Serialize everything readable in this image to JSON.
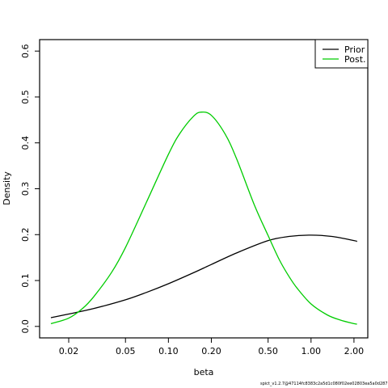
{
  "chart_data": {
    "type": "line",
    "title": "",
    "xlabel": "beta",
    "ylabel": "Density",
    "x_scale": "log",
    "xlim": [
      0.0125,
      2.5
    ],
    "ylim": [
      -0.025,
      0.625
    ],
    "x_ticks": [
      0.02,
      0.05,
      0.1,
      0.2,
      0.5,
      1.0,
      2.0
    ],
    "x_tick_labels": [
      "0.02",
      "0.05",
      "0.10",
      "0.20",
      "0.50",
      "1.00",
      "2.00"
    ],
    "y_ticks": [
      0.0,
      0.1,
      0.2,
      0.3,
      0.4,
      0.5,
      0.6
    ],
    "y_tick_labels": [
      "0.0",
      "0.1",
      "0.2",
      "0.3",
      "0.4",
      "0.5",
      "0.6"
    ],
    "grid": false,
    "legend_position": "top-right",
    "series": [
      {
        "name": "Prior",
        "color": "#000000",
        "x": [
          0.015,
          0.02,
          0.03,
          0.05,
          0.07,
          0.1,
          0.15,
          0.2,
          0.3,
          0.5,
          0.7,
          1.0,
          1.4,
          2.0,
          2.1
        ],
        "y": [
          0.019,
          0.027,
          0.039,
          0.058,
          0.074,
          0.093,
          0.117,
          0.135,
          0.16,
          0.187,
          0.196,
          0.199,
          0.196,
          0.187,
          0.185
        ]
      },
      {
        "name": "Post.",
        "color": "#00cc00",
        "x": [
          0.015,
          0.02,
          0.025,
          0.03,
          0.04,
          0.05,
          0.07,
          0.1,
          0.12,
          0.15,
          0.17,
          0.2,
          0.25,
          0.3,
          0.4,
          0.5,
          0.6,
          0.7,
          0.8,
          1.0,
          1.3,
          1.6,
          2.0,
          2.1
        ],
        "y": [
          0.006,
          0.018,
          0.039,
          0.065,
          0.118,
          0.172,
          0.27,
          0.375,
          0.42,
          0.458,
          0.467,
          0.46,
          0.419,
          0.366,
          0.265,
          0.198,
          0.145,
          0.109,
          0.083,
          0.049,
          0.025,
          0.014,
          0.006,
          0.005
        ]
      }
    ]
  },
  "footer": {
    "text": "spict_v1.2.7@47114fc8383c2a5d1c080f02ee02803ea5a0d287"
  }
}
